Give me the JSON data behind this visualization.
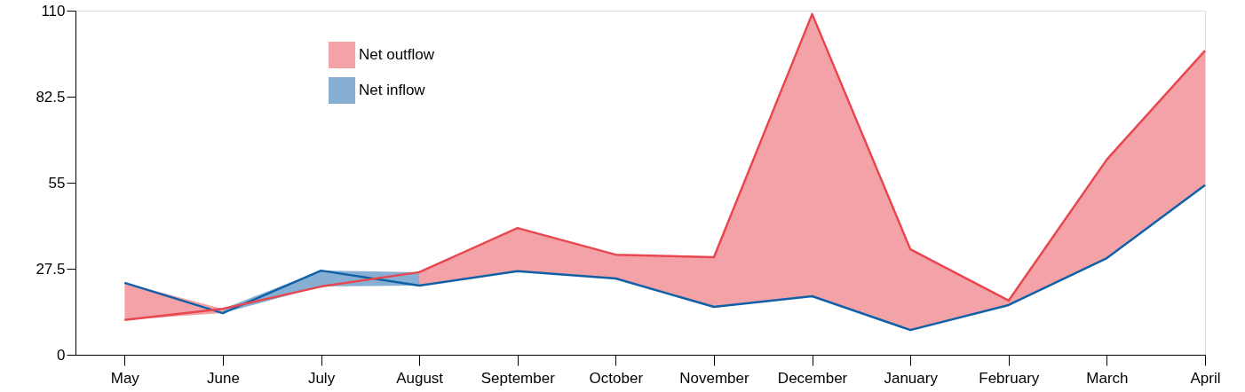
{
  "chart_data": {
    "type": "line",
    "categories": [
      "May",
      "June",
      "July",
      "August",
      "September",
      "October",
      "November",
      "December",
      "January",
      "February",
      "March",
      "April"
    ],
    "series": [
      {
        "name": "Net outflow",
        "color": "#e8474f",
        "values": [
          11.1,
          14.7,
          21.8,
          26.4,
          40.5,
          32.0,
          31.2,
          108.9,
          33.7,
          17.3,
          62.4,
          97.2
        ],
        "lower": [
          11.1,
          13.3,
          null,
          22.1,
          26.7,
          24.4,
          15.3,
          18.7,
          7.9,
          15.9,
          30.9,
          54.2
        ],
        "upper": [
          23.0,
          14.7,
          null,
          26.4,
          40.5,
          32.0,
          31.2,
          108.9,
          33.7,
          17.3,
          62.4,
          97.2
        ]
      },
      {
        "name": "Net inflow",
        "color": "#1060a8",
        "values": [
          23.0,
          13.3,
          26.9,
          22.1,
          26.7,
          24.4,
          15.3,
          18.7,
          7.9,
          15.9,
          30.9,
          54.2
        ],
        "lower": [
          null,
          13.3,
          21.8,
          22.1,
          null,
          null,
          null,
          null,
          null,
          null,
          null,
          null
        ],
        "upper": [
          null,
          14.7,
          26.9,
          26.4,
          null,
          null,
          null,
          null,
          null,
          null,
          null,
          null
        ]
      }
    ],
    "ylim": [
      0,
      110
    ],
    "yticks": [
      0,
      27.5,
      55,
      82.5,
      110
    ],
    "grid": false,
    "legend": "top left",
    "marker": "none",
    "line_style": "solid"
  }
}
